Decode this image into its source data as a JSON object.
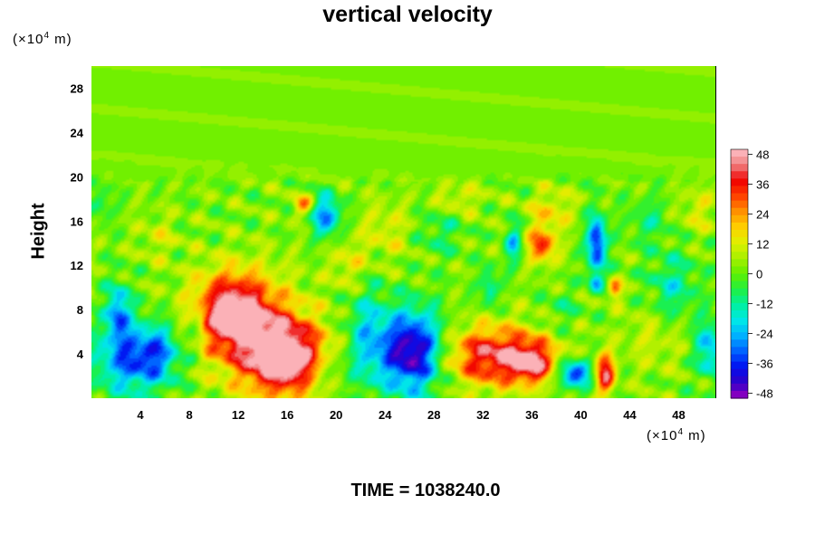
{
  "chart_data": {
    "type": "heatmap",
    "title": "vertical velocity",
    "ylabel": "Height",
    "y_unit": "(×10⁴ m)",
    "x_unit": "(×10⁴ m)",
    "x_unit_parts": {
      "pre": "(×10",
      "exp": "4",
      "post": " m)"
    },
    "y_unit_parts": {
      "pre": "(×10",
      "exp": "4",
      "post": " m)"
    },
    "footer": "TIME = 1038240.0",
    "xlim": [
      0,
      51
    ],
    "ylim": [
      0,
      30
    ],
    "x_ticks": [
      4,
      8,
      12,
      16,
      20,
      24,
      28,
      32,
      36,
      40,
      44,
      48
    ],
    "y_ticks": [
      4,
      8,
      12,
      16,
      20,
      24,
      28
    ],
    "colorbar": {
      "min": -50,
      "max": 50,
      "ticks": [
        48,
        36,
        24,
        12,
        0,
        -12,
        -24,
        -36,
        -48
      ],
      "colors": [
        "#9d00bd",
        "#3000c8",
        "#0010f0",
        "#0060ff",
        "#00b0ff",
        "#00e8e8",
        "#00f0a0",
        "#20f040",
        "#60f000",
        "#a8f000",
        "#e0f000",
        "#ffd000",
        "#ff9000",
        "#ff4000",
        "#f00000",
        "#f08080",
        "#ffc0c8"
      ]
    },
    "background_value": 2,
    "features": [
      {
        "x": 3.5,
        "y": 3.5,
        "sx": 2.3,
        "sy": 2.2,
        "v": -34
      },
      {
        "x": 2.2,
        "y": 7.8,
        "sx": 0.7,
        "sy": 1.8,
        "v": -30
      },
      {
        "x": 5.5,
        "y": 4.5,
        "sx": 1.2,
        "sy": 1.6,
        "v": -14
      },
      {
        "x": 11.5,
        "y": 7.8,
        "sx": 2.2,
        "sy": 2.4,
        "v": 44
      },
      {
        "x": 15.8,
        "y": 3.8,
        "sx": 2.2,
        "sy": 2.3,
        "v": 50
      },
      {
        "x": 13.5,
        "y": 5.5,
        "sx": 3.2,
        "sy": 3.8,
        "v": 16
      },
      {
        "x": 19.6,
        "y": 2.5,
        "sx": 1.0,
        "sy": 1.0,
        "v": -10
      },
      {
        "x": 22.5,
        "y": 5.5,
        "sx": 1.2,
        "sy": 3.2,
        "v": -20
      },
      {
        "x": 26.2,
        "y": 4.2,
        "sx": 1.8,
        "sy": 2.6,
        "v": -52
      },
      {
        "x": 33.0,
        "y": 3.8,
        "sx": 3.0,
        "sy": 1.9,
        "v": 40
      },
      {
        "x": 36.0,
        "y": 3.2,
        "sx": 1.2,
        "sy": 1.2,
        "v": 30
      },
      {
        "x": 39.5,
        "y": 2.2,
        "sx": 0.9,
        "sy": 0.9,
        "v": -40
      },
      {
        "x": 42.0,
        "y": 2.2,
        "sx": 0.55,
        "sy": 1.3,
        "v": 40
      },
      {
        "x": 42.8,
        "y": 9.8,
        "sx": 0.4,
        "sy": 0.6,
        "v": 28
      },
      {
        "x": 41.3,
        "y": 14.0,
        "sx": 0.55,
        "sy": 1.8,
        "v": -42
      },
      {
        "x": 41.2,
        "y": 10.5,
        "sx": 0.4,
        "sy": 0.6,
        "v": -22
      },
      {
        "x": 36.8,
        "y": 13.8,
        "sx": 0.8,
        "sy": 1.1,
        "v": 32
      },
      {
        "x": 19.2,
        "y": 16.5,
        "sx": 0.8,
        "sy": 1.3,
        "v": -32
      },
      {
        "x": 17.3,
        "y": 17.5,
        "sx": 0.6,
        "sy": 0.6,
        "v": 22
      },
      {
        "x": 34.5,
        "y": 14.0,
        "sx": 0.5,
        "sy": 1.3,
        "v": -22
      },
      {
        "x": 32.5,
        "y": 10.0,
        "sx": 0.5,
        "sy": 1.3,
        "v": -18
      },
      {
        "x": 37.5,
        "y": 17.0,
        "sx": 1.3,
        "sy": 1.3,
        "v": 14
      },
      {
        "x": 47.5,
        "y": 10.0,
        "sx": 1.4,
        "sy": 2.2,
        "v": -16
      },
      {
        "x": 50.5,
        "y": 4.5,
        "sx": 0.8,
        "sy": 1.8,
        "v": -26
      },
      {
        "x": 46.0,
        "y": 5.5,
        "sx": 1.8,
        "sy": 2.2,
        "v": 8
      },
      {
        "x": 8.5,
        "y": 6.5,
        "sx": 0.6,
        "sy": 1.6,
        "v": -12
      },
      {
        "x": 24.0,
        "y": 15.0,
        "sx": 1.5,
        "sy": 2.0,
        "v": 10
      },
      {
        "x": 28.5,
        "y": 15.0,
        "sx": 1.3,
        "sy": 1.5,
        "v": -10
      },
      {
        "x": 21.0,
        "y": 12.0,
        "sx": 1.0,
        "sy": 1.5,
        "v": 12
      },
      {
        "x": 0.8,
        "y": 17.5,
        "sx": 0.6,
        "sy": 1.0,
        "v": -12
      },
      {
        "x": 5.5,
        "y": 14.5,
        "sx": 1.2,
        "sy": 1.5,
        "v": 8
      },
      {
        "x": 30.0,
        "y": 18.0,
        "sx": 1.5,
        "sy": 1.0,
        "v": 10
      },
      {
        "x": 45.5,
        "y": 16.0,
        "sx": 1.2,
        "sy": 1.5,
        "v": -10
      },
      {
        "x": 49.5,
        "y": 17.0,
        "sx": 1.0,
        "sy": 1.5,
        "v": 10
      },
      {
        "x": 38.5,
        "y": 8.0,
        "sx": 1.0,
        "sy": 1.2,
        "v": -8
      }
    ]
  }
}
